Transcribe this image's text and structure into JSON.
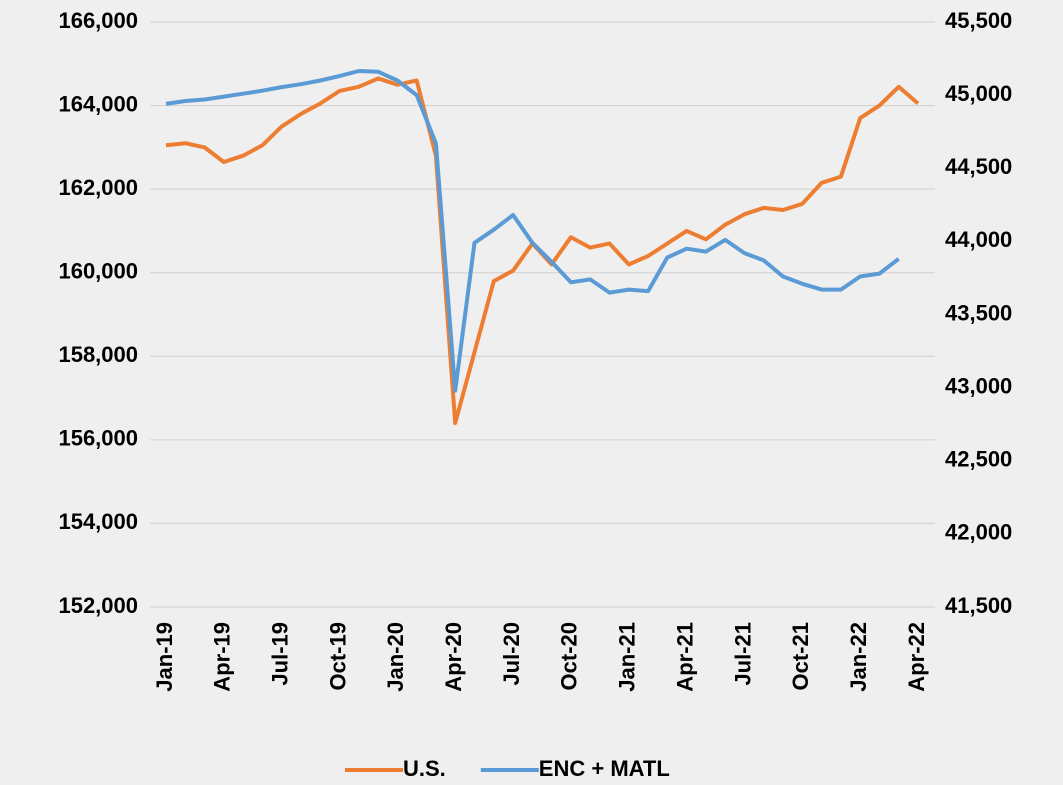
{
  "chart_data": {
    "type": "line",
    "categories": [
      "Jan-19",
      null,
      null,
      "Apr-19",
      null,
      null,
      "Jul-19",
      null,
      null,
      "Oct-19",
      null,
      null,
      "Jan-20",
      null,
      null,
      "Apr-20",
      null,
      null,
      "Jul-20",
      null,
      null,
      "Oct-20",
      null,
      null,
      "Jan-21",
      null,
      null,
      "Apr-21",
      null,
      null,
      "Jul-21",
      null,
      null,
      "Oct-21",
      null,
      null,
      "Jan-22",
      null,
      null,
      "Apr-22"
    ],
    "series": [
      {
        "name": "U.S.",
        "color": "#ed7d31",
        "values": [
          163050,
          163100,
          163000,
          162650,
          162800,
          163050,
          163500,
          163800,
          164050,
          164350,
          164450,
          164650,
          164500,
          164600,
          162800,
          156400,
          158100,
          159800,
          160050,
          160700,
          160200,
          160850,
          160600,
          160700,
          160200,
          160400,
          160700,
          161000,
          160800,
          161150,
          161400,
          161550,
          161500,
          161650,
          162150,
          162300,
          163700,
          164000,
          164450,
          164050
        ]
      },
      {
        "name": "ENC + MATL",
        "color": "#5b9bd5",
        "axis": "y2",
        "values": [
          44940,
          44960,
          44970,
          44990,
          45010,
          45030,
          45055,
          45075,
          45100,
          45130,
          45165,
          45160,
          45100,
          45000,
          44670,
          42980,
          43990,
          44080,
          44180,
          43990,
          43860,
          43720,
          43740,
          43650,
          43670,
          43660,
          43890,
          43950,
          43930,
          44010,
          43920,
          43870,
          43760,
          43710,
          43670,
          43670,
          43760,
          43780,
          43880,
          null
        ]
      }
    ],
    "ylim": [
      152000,
      166000
    ],
    "yticks": [
      {
        "value": 152000,
        "label": "152,000"
      },
      {
        "value": 154000,
        "label": "154,000"
      },
      {
        "value": 156000,
        "label": "156,000"
      },
      {
        "value": 158000,
        "label": "158,000"
      },
      {
        "value": 160000,
        "label": "160,000"
      },
      {
        "value": 162000,
        "label": "162,000"
      },
      {
        "value": 164000,
        "label": "164,000"
      },
      {
        "value": 166000,
        "label": "166,000"
      }
    ],
    "y2lim": [
      41500,
      45500
    ],
    "y2ticks": [
      {
        "value": 41500,
        "label": "41,500"
      },
      {
        "value": 42000,
        "label": "42,000"
      },
      {
        "value": 42500,
        "label": "42,500"
      },
      {
        "value": 43000,
        "label": "43,000"
      },
      {
        "value": 43500,
        "label": "43,500"
      },
      {
        "value": 44000,
        "label": "44,000"
      },
      {
        "value": 44500,
        "label": "44,500"
      },
      {
        "value": 45000,
        "label": "45,000"
      },
      {
        "value": 45500,
        "label": "45,500"
      }
    ],
    "grid": true,
    "legend": "bottom"
  }
}
